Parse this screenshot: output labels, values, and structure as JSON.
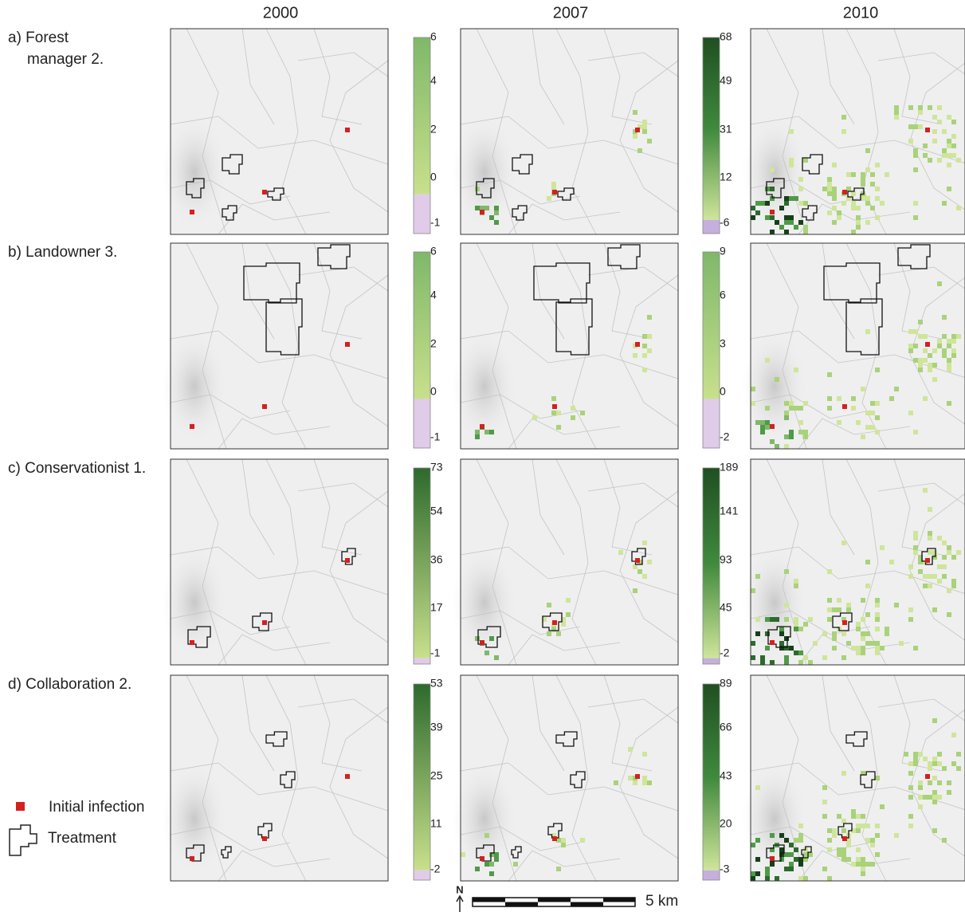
{
  "columns": [
    "2000",
    "2007",
    "2010"
  ],
  "rows": [
    {
      "label_lines": [
        "a) Forest",
        "manager 2."
      ],
      "colorbar_1": [
        6,
        4,
        2,
        0,
        -1
      ],
      "colorbar_2": [
        68,
        49,
        31,
        12,
        -6
      ]
    },
    {
      "label_lines": [
        "b) Landowner 3."
      ],
      "colorbar_1": [
        6,
        4,
        2,
        0,
        -1
      ],
      "colorbar_2": [
        9,
        6,
        3,
        0,
        -2
      ]
    },
    {
      "label_lines": [
        "c) Conservationist 1."
      ],
      "colorbar_1": [
        73,
        54,
        36,
        17,
        -1
      ],
      "colorbar_2": [
        189,
        141,
        93,
        45,
        -2
      ]
    },
    {
      "label_lines": [
        "d) Collaboration 2."
      ],
      "colorbar_1": [
        53,
        39,
        25,
        11,
        -2
      ],
      "colorbar_2": [
        89,
        66,
        43,
        20,
        -3
      ]
    }
  ],
  "legend": {
    "initial_infection": "Initial infection",
    "treatment": "Treatment"
  },
  "scale_bar": {
    "north": "N",
    "label": "5 km"
  }
}
